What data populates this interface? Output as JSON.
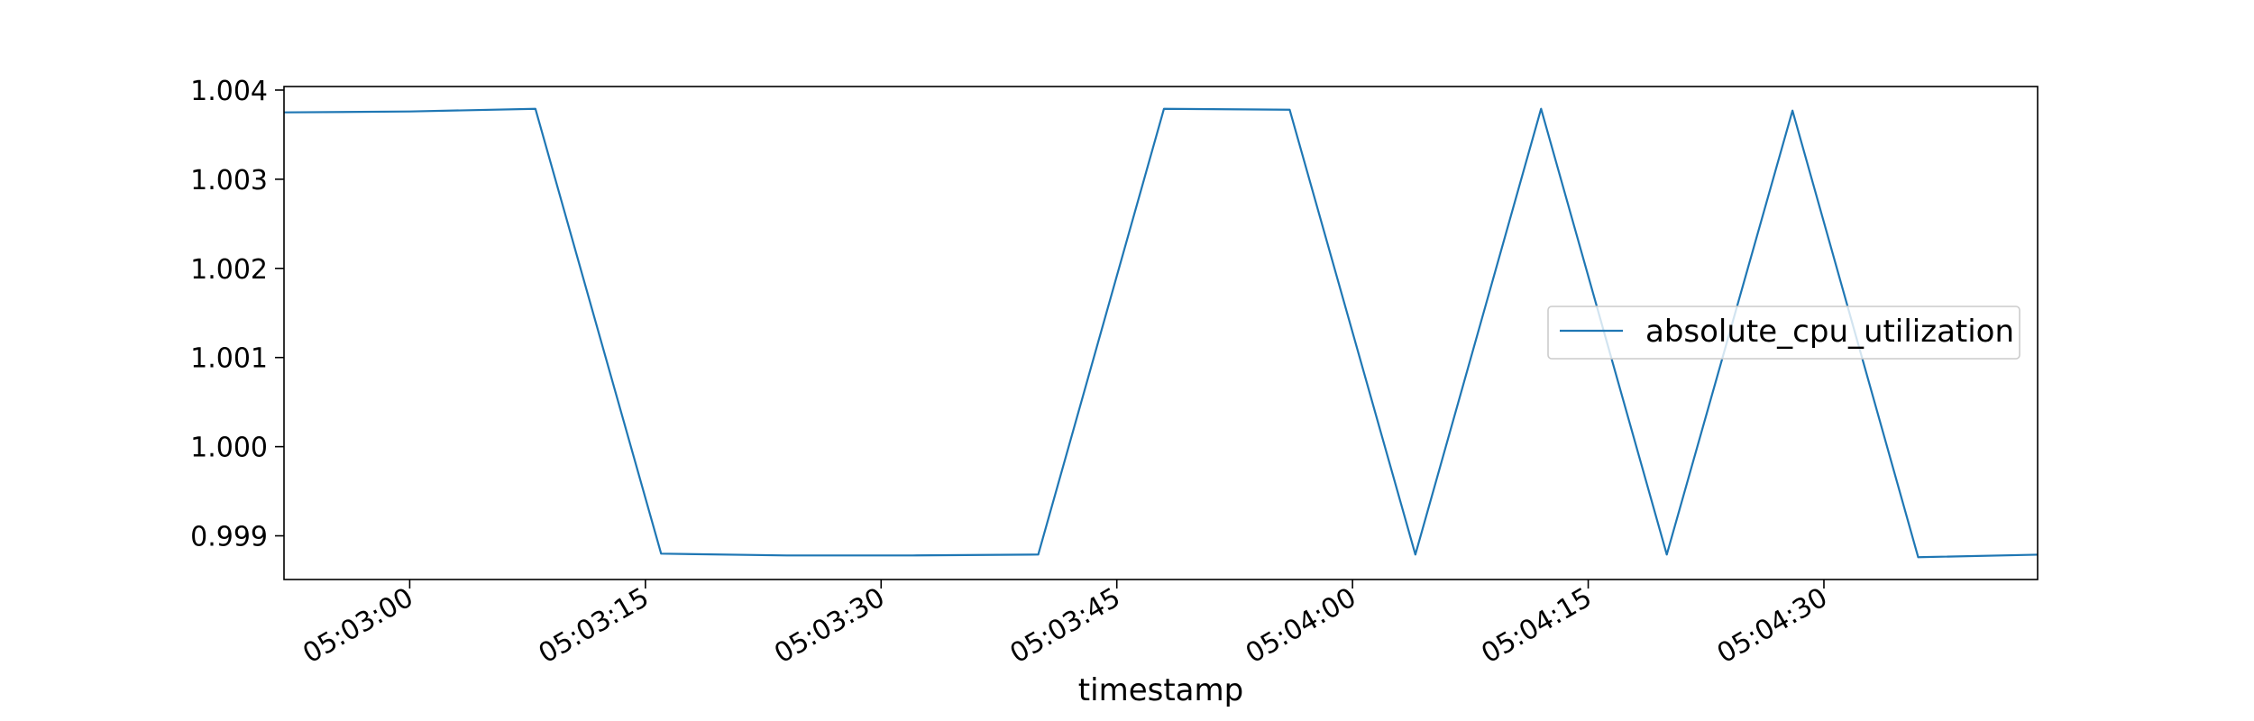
{
  "chart_data": {
    "type": "line",
    "xlabel": "timestamp",
    "ylabel": "",
    "ylim": [
      0.99851,
      1.00404
    ],
    "xlim": [
      "05:02:52.0",
      "05:04:43.6"
    ],
    "grid": false,
    "legend_position": "center-right",
    "yticks": [
      "0.999",
      "1.000",
      "1.001",
      "1.002",
      "1.003",
      "1.004"
    ],
    "xticks": [
      "05:03:00",
      "05:03:15",
      "05:03:30",
      "05:03:45",
      "05:04:00",
      "05:04:15",
      "05:04:30"
    ],
    "series": [
      {
        "name": "absolute_cpu_utilization",
        "color": "#1f77b4",
        "x": [
          "05:02:52",
          "05:03:00",
          "05:03:08",
          "05:03:16",
          "05:03:24",
          "05:03:32",
          "05:03:40",
          "05:03:48",
          "05:03:56",
          "05:04:04",
          "05:04:12",
          "05:04:20",
          "05:04:28",
          "05:04:36",
          "05:04:44"
        ],
        "values": [
          1.00375,
          1.00376,
          1.00379,
          0.9988,
          0.99878,
          0.99878,
          0.99879,
          1.00379,
          1.00378,
          0.99879,
          1.00379,
          0.99879,
          1.00377,
          0.99876,
          0.99879
        ]
      }
    ]
  }
}
